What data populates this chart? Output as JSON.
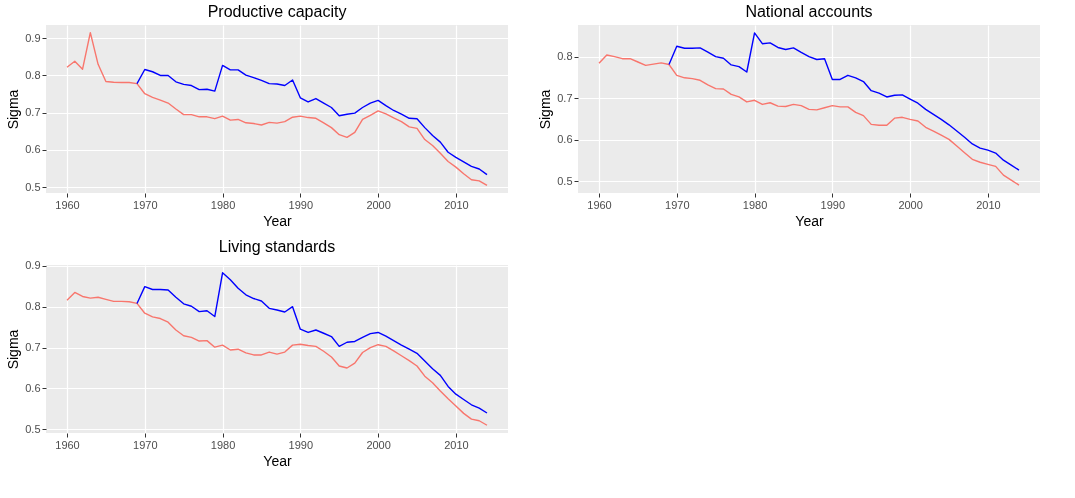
{
  "chart_data": [
    {
      "type": "line",
      "title": "Productive capacity",
      "xlabel": "Year",
      "ylabel": "Sigma",
      "xlim": [
        1957.3,
        2016.7
      ],
      "xticks": [
        1960,
        1970,
        1980,
        1990,
        2000,
        2010
      ],
      "ylim": [
        0.4845,
        0.9355
      ],
      "yticks": [
        0.5,
        0.6,
        0.7,
        0.8,
        0.9
      ],
      "grid": true,
      "series": [
        {
          "color": "#f8766d",
          "x": [
            1960,
            1961,
            1962,
            1963,
            1964,
            1965,
            1966,
            1967,
            1968,
            1969,
            1970,
            1971,
            1972,
            1973,
            1974,
            1975,
            1976,
            1977,
            1978,
            1979,
            1980,
            1981,
            1982,
            1983,
            1984,
            1985,
            1986,
            1987,
            1988,
            1989,
            1990,
            1991,
            1992,
            1993,
            1994,
            1995,
            1996,
            1997,
            1998,
            1999,
            2000,
            2001,
            2002,
            2003,
            2004,
            2005,
            2006,
            2007,
            2008,
            2009,
            2010,
            2011,
            2012,
            2013,
            2014
          ],
          "values": [
            0.822,
            0.838,
            0.817,
            0.915,
            0.83,
            0.784,
            0.782,
            0.781,
            0.781,
            0.778,
            0.751,
            0.741,
            0.734,
            0.726,
            0.71,
            0.695,
            0.695,
            0.689,
            0.689,
            0.684,
            0.691,
            0.68,
            0.682,
            0.673,
            0.671,
            0.667,
            0.674,
            0.672,
            0.676,
            0.688,
            0.691,
            0.687,
            0.685,
            0.673,
            0.66,
            0.641,
            0.634,
            0.647,
            0.682,
            0.693,
            0.705,
            0.697,
            0.686,
            0.676,
            0.662,
            0.658,
            0.628,
            0.612,
            0.591,
            0.569,
            0.554,
            0.536,
            0.52,
            0.517,
            0.505
          ]
        },
        {
          "color": "#0000ff",
          "x": [
            1969,
            1970,
            1971,
            1972,
            1973,
            1974,
            1975,
            1976,
            1977,
            1978,
            1979,
            1980,
            1981,
            1982,
            1983,
            1984,
            1985,
            1986,
            1987,
            1988,
            1989,
            1990,
            1991,
            1992,
            1993,
            1994,
            1995,
            1996,
            1997,
            1998,
            1999,
            2000,
            2001,
            2002,
            2003,
            2004,
            2005,
            2006,
            2007,
            2008,
            2009,
            2010,
            2011,
            2012,
            2013,
            2014
          ],
          "values": [
            0.778,
            0.816,
            0.81,
            0.8,
            0.8,
            0.783,
            0.776,
            0.773,
            0.762,
            0.763,
            0.758,
            0.827,
            0.815,
            0.815,
            0.801,
            0.794,
            0.787,
            0.778,
            0.777,
            0.773,
            0.788,
            0.74,
            0.729,
            0.738,
            0.726,
            0.714,
            0.692,
            0.696,
            0.699,
            0.714,
            0.726,
            0.733,
            0.719,
            0.706,
            0.696,
            0.685,
            0.684,
            0.66,
            0.639,
            0.621,
            0.594,
            0.58,
            0.568,
            0.556,
            0.549,
            0.534
          ]
        }
      ]
    },
    {
      "type": "line",
      "title": "National accounts",
      "xlabel": "Year",
      "ylabel": "Sigma",
      "xlim": [
        1957.3,
        2016.7
      ],
      "xticks": [
        1960,
        1970,
        1980,
        1990,
        2000,
        2010
      ],
      "ylim": [
        0.472,
        0.876
      ],
      "yticks": [
        0.5,
        0.6,
        0.7,
        0.8
      ],
      "grid": true,
      "series": [
        {
          "color": "#f8766d",
          "x": [
            1960,
            1961,
            1962,
            1963,
            1964,
            1965,
            1966,
            1967,
            1968,
            1969,
            1970,
            1971,
            1972,
            1973,
            1974,
            1975,
            1976,
            1977,
            1978,
            1979,
            1980,
            1981,
            1982,
            1983,
            1984,
            1985,
            1986,
            1987,
            1988,
            1989,
            1990,
            1991,
            1992,
            1993,
            1994,
            1995,
            1996,
            1997,
            1998,
            1999,
            2000,
            2001,
            2002,
            2003,
            2004,
            2005,
            2006,
            2007,
            2008,
            2009,
            2010,
            2011,
            2012,
            2013,
            2014
          ],
          "values": [
            0.784,
            0.804,
            0.8,
            0.795,
            0.795,
            0.787,
            0.779,
            0.782,
            0.785,
            0.781,
            0.755,
            0.749,
            0.747,
            0.743,
            0.732,
            0.723,
            0.722,
            0.709,
            0.703,
            0.691,
            0.695,
            0.685,
            0.689,
            0.681,
            0.68,
            0.685,
            0.682,
            0.673,
            0.672,
            0.677,
            0.682,
            0.679,
            0.679,
            0.666,
            0.658,
            0.637,
            0.635,
            0.635,
            0.652,
            0.654,
            0.649,
            0.645,
            0.63,
            0.621,
            0.611,
            0.601,
            0.585,
            0.569,
            0.553,
            0.546,
            0.541,
            0.536,
            0.515,
            0.503,
            0.491
          ]
        },
        {
          "color": "#0000ff",
          "x": [
            1969,
            1970,
            1971,
            1972,
            1973,
            1974,
            1975,
            1976,
            1977,
            1978,
            1979,
            1980,
            1981,
            1982,
            1983,
            1984,
            1985,
            1986,
            1987,
            1988,
            1989,
            1990,
            1991,
            1992,
            1993,
            1994,
            1995,
            1996,
            1997,
            1998,
            1999,
            2000,
            2001,
            2002,
            2003,
            2004,
            2005,
            2006,
            2007,
            2008,
            2009,
            2010,
            2011,
            2012,
            2013,
            2014
          ],
          "values": [
            0.781,
            0.825,
            0.82,
            0.82,
            0.821,
            0.811,
            0.8,
            0.796,
            0.78,
            0.776,
            0.763,
            0.857,
            0.831,
            0.833,
            0.822,
            0.817,
            0.821,
            0.81,
            0.8,
            0.793,
            0.795,
            0.745,
            0.745,
            0.755,
            0.749,
            0.74,
            0.718,
            0.712,
            0.703,
            0.707,
            0.708,
            0.698,
            0.688,
            0.673,
            0.661,
            0.649,
            0.636,
            0.621,
            0.606,
            0.59,
            0.58,
            0.575,
            0.568,
            0.551,
            0.539,
            0.527
          ]
        }
      ]
    },
    {
      "type": "line",
      "title": "Living standards",
      "xlabel": "Year",
      "ylabel": "Sigma",
      "xlim": [
        1957.3,
        2016.7
      ],
      "xticks": [
        1960,
        1970,
        1980,
        1990,
        2000,
        2010
      ],
      "ylim": [
        0.491,
        0.902
      ],
      "yticks": [
        0.5,
        0.6,
        0.7,
        0.8,
        0.9
      ],
      "grid": true,
      "series": [
        {
          "color": "#f8766d",
          "x": [
            1960,
            1961,
            1962,
            1963,
            1964,
            1965,
            1966,
            1967,
            1968,
            1969,
            1970,
            1971,
            1972,
            1973,
            1974,
            1975,
            1976,
            1977,
            1978,
            1979,
            1980,
            1981,
            1982,
            1983,
            1984,
            1985,
            1986,
            1987,
            1988,
            1989,
            1990,
            1991,
            1992,
            1993,
            1994,
            1995,
            1996,
            1997,
            1998,
            1999,
            2000,
            2001,
            2002,
            2003,
            2004,
            2005,
            2006,
            2007,
            2008,
            2009,
            2010,
            2011,
            2012,
            2013,
            2014
          ],
          "values": [
            0.816,
            0.835,
            0.825,
            0.821,
            0.823,
            0.818,
            0.813,
            0.813,
            0.812,
            0.808,
            0.784,
            0.775,
            0.771,
            0.762,
            0.743,
            0.729,
            0.725,
            0.716,
            0.717,
            0.701,
            0.706,
            0.694,
            0.696,
            0.687,
            0.682,
            0.682,
            0.689,
            0.684,
            0.689,
            0.706,
            0.708,
            0.705,
            0.703,
            0.691,
            0.677,
            0.655,
            0.65,
            0.662,
            0.688,
            0.7,
            0.707,
            0.703,
            0.692,
            0.68,
            0.668,
            0.655,
            0.63,
            0.614,
            0.594,
            0.575,
            0.557,
            0.539,
            0.525,
            0.521,
            0.51
          ]
        },
        {
          "color": "#0000ff",
          "x": [
            1969,
            1970,
            1971,
            1972,
            1973,
            1974,
            1975,
            1976,
            1977,
            1978,
            1979,
            1980,
            1981,
            1982,
            1983,
            1984,
            1985,
            1986,
            1987,
            1988,
            1989,
            1990,
            1991,
            1992,
            1993,
            1994,
            1995,
            1996,
            1997,
            1998,
            1999,
            2000,
            2001,
            2002,
            2003,
            2004,
            2005,
            2006,
            2007,
            2008,
            2009,
            2010,
            2011,
            2012,
            2013,
            2014
          ],
          "values": [
            0.808,
            0.849,
            0.842,
            0.842,
            0.841,
            0.823,
            0.807,
            0.801,
            0.788,
            0.79,
            0.776,
            0.883,
            0.866,
            0.845,
            0.829,
            0.82,
            0.814,
            0.796,
            0.792,
            0.787,
            0.8,
            0.745,
            0.737,
            0.743,
            0.735,
            0.727,
            0.703,
            0.713,
            0.715,
            0.725,
            0.734,
            0.737,
            0.728,
            0.717,
            0.706,
            0.696,
            0.686,
            0.667,
            0.648,
            0.632,
            0.605,
            0.586,
            0.573,
            0.56,
            0.552,
            0.54
          ]
        }
      ]
    }
  ]
}
